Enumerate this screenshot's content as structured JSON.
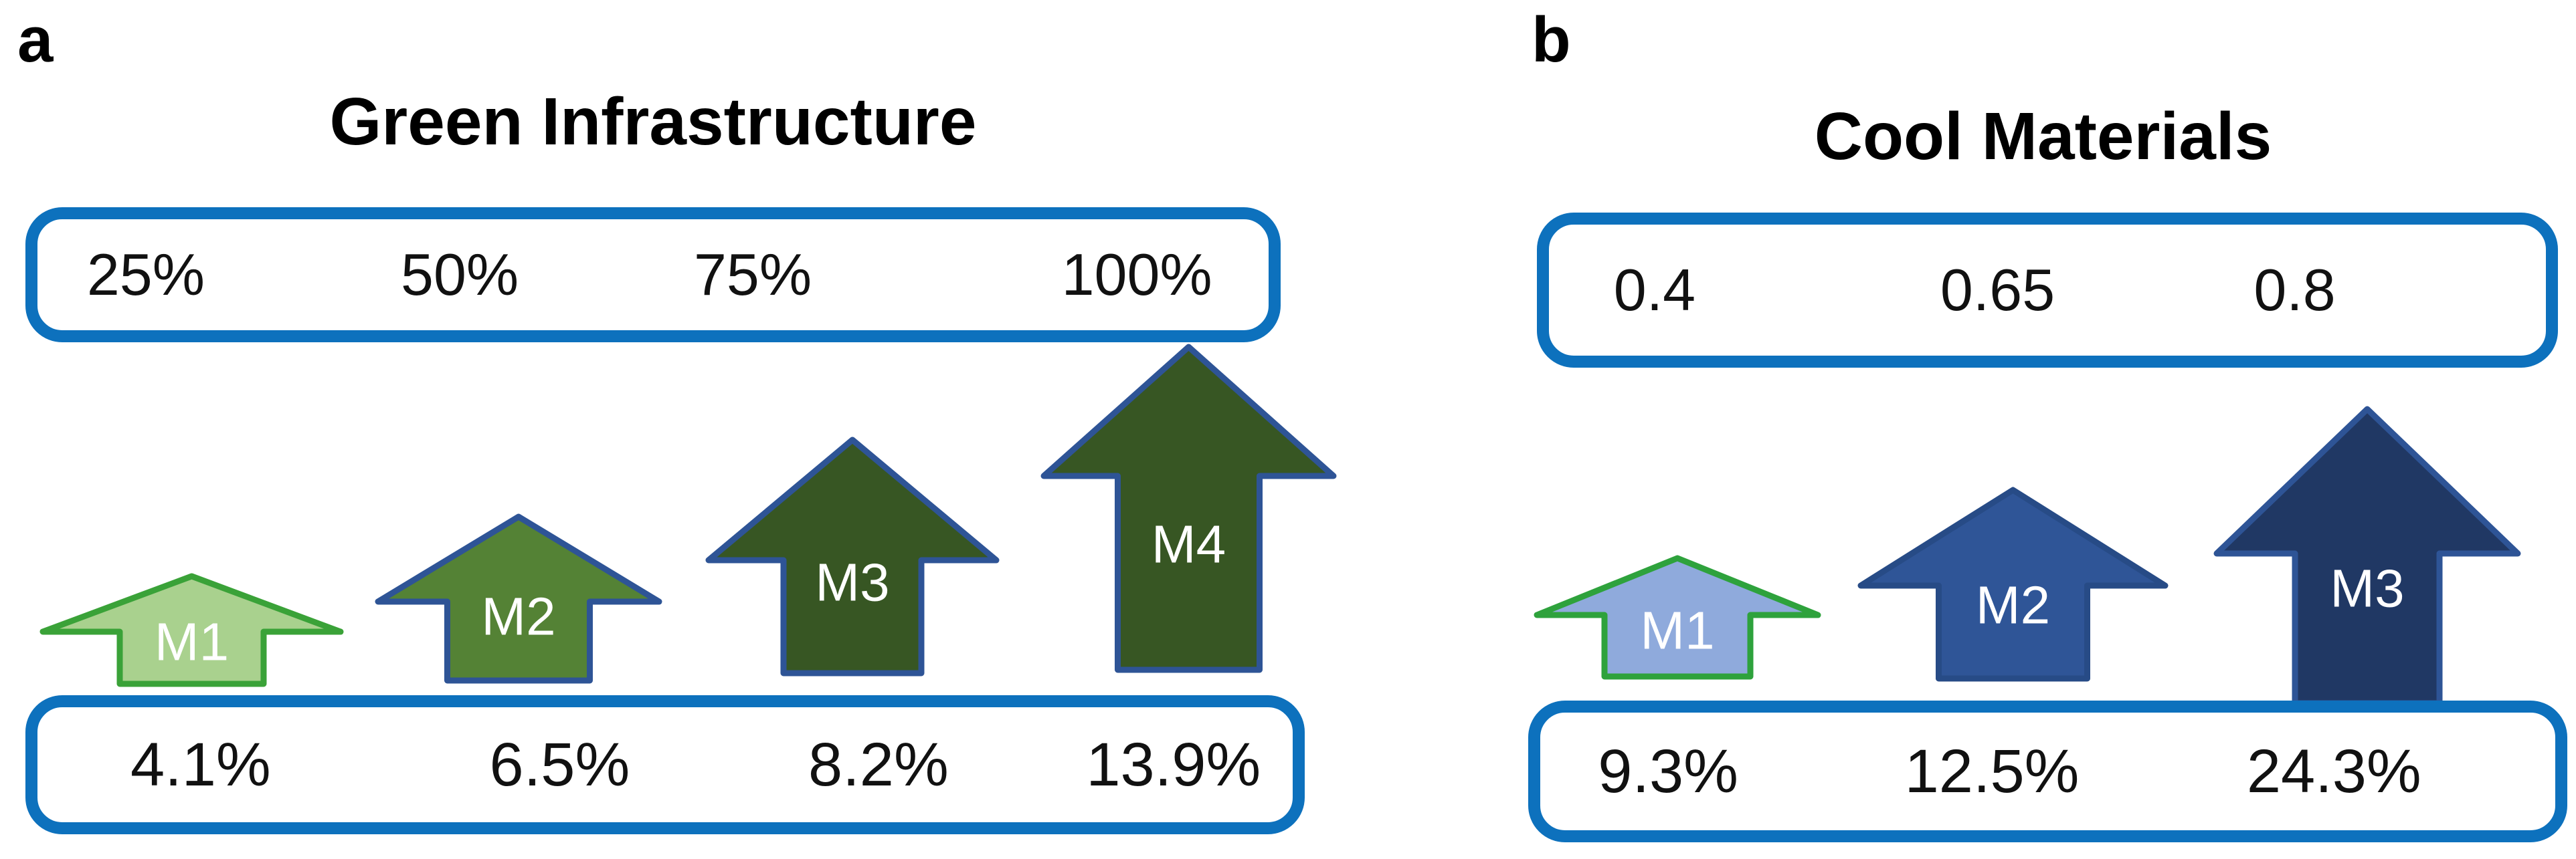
{
  "panels": [
    {
      "label": "a",
      "title": "Green Infrastructure",
      "top_box": {
        "values": [
          "25%",
          "50%",
          "75%",
          "100%"
        ]
      },
      "arrows": [
        {
          "label": "M1",
          "fill": "#a9d18e",
          "stroke": "#3aa238",
          "relative_size": 1
        },
        {
          "label": "M2",
          "fill": "#548235",
          "stroke": "#2e5496",
          "relative_size": 2
        },
        {
          "label": "M3",
          "fill": "#375623",
          "stroke": "#2e5496",
          "relative_size": 3
        },
        {
          "label": "M4",
          "fill": "#375623",
          "stroke": "#2e5496",
          "relative_size": 4
        }
      ],
      "bottom_box": {
        "values": [
          "4.1%",
          "6.5%",
          "8.2%",
          "13.9%"
        ]
      }
    },
    {
      "label": "b",
      "title": "Cool Materials",
      "top_box": {
        "values": [
          "0.4",
          "0.65",
          "0.8"
        ]
      },
      "arrows": [
        {
          "label": "M1",
          "fill": "#8faadc",
          "stroke": "#2ea23c",
          "relative_size": 1
        },
        {
          "label": "M2",
          "fill": "#2f5597",
          "stroke": "#274b86",
          "relative_size": 2
        },
        {
          "label": "M3",
          "fill": "#203864",
          "stroke": "#2e5496",
          "relative_size": 3
        }
      ],
      "bottom_box": {
        "values": [
          "9.3%",
          "12.5%",
          "24.3%"
        ]
      }
    }
  ],
  "colors": {
    "box_border": "#0d71bd",
    "arrow_label_text": "#ffffff",
    "text": "#111111",
    "background": "#ffffff"
  },
  "chart_data": [
    {
      "type": "diagram-arrows",
      "title": "Green Infrastructure",
      "categories": [
        "M1",
        "M2",
        "M3",
        "M4"
      ],
      "input_levels": [
        "25%",
        "50%",
        "75%",
        "100%"
      ],
      "reduction_values": [
        "4.1%",
        "6.5%",
        "8.2%",
        "13.9%"
      ],
      "layout_hint": "arrows increase in size left to right; inputs in top rounded box, outputs in bottom rounded box"
    },
    {
      "type": "diagram-arrows",
      "title": "Cool Materials",
      "categories": [
        "M1",
        "M2",
        "M3"
      ],
      "input_levels": [
        "0.4",
        "0.65",
        "0.8"
      ],
      "reduction_values": [
        "9.3%",
        "12.5%",
        "24.3%"
      ],
      "layout_hint": "arrows increase in size left to right; inputs in top rounded box, outputs in bottom rounded box"
    }
  ]
}
